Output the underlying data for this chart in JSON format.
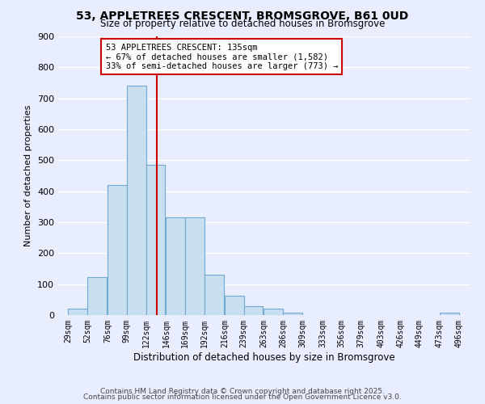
{
  "title1": "53, APPLETREES CRESCENT, BROMSGROVE, B61 0UD",
  "title2": "Size of property relative to detached houses in Bromsgrove",
  "xlabel": "Distribution of detached houses by size in Bromsgrove",
  "ylabel": "Number of detached properties",
  "bar_left_edges": [
    29,
    52,
    76,
    99,
    122,
    146,
    169,
    192,
    216,
    239,
    263,
    286,
    309,
    333,
    356,
    379,
    403,
    426,
    449,
    473
  ],
  "bar_heights": [
    20,
    122,
    420,
    740,
    485,
    315,
    315,
    130,
    63,
    30,
    20,
    8,
    0,
    0,
    0,
    0,
    0,
    0,
    0,
    8
  ],
  "bin_width": 23,
  "bar_color": "#c8dff0",
  "bar_edge_color": "#6fa8d0",
  "vline_x": 135,
  "vline_color": "#cc0000",
  "annotation_text": "53 APPLETREES CRESCENT: 135sqm\n← 67% of detached houses are smaller (1,582)\n33% of semi-detached houses are larger (773) →",
  "annotation_box_color": "white",
  "annotation_box_edge_color": "#cc0000",
  "ylim": [
    0,
    900
  ],
  "yticks": [
    0,
    100,
    200,
    300,
    400,
    500,
    600,
    700,
    800,
    900
  ],
  "x_tick_labels": [
    "29sqm",
    "52sqm",
    "76sqm",
    "99sqm",
    "122sqm",
    "146sqm",
    "169sqm",
    "192sqm",
    "216sqm",
    "239sqm",
    "263sqm",
    "286sqm",
    "309sqm",
    "333sqm",
    "356sqm",
    "379sqm",
    "403sqm",
    "426sqm",
    "449sqm",
    "473sqm",
    "496sqm"
  ],
  "x_tick_positions": [
    29,
    52,
    76,
    99,
    122,
    146,
    169,
    192,
    216,
    239,
    263,
    286,
    309,
    333,
    356,
    379,
    403,
    426,
    449,
    473,
    496
  ],
  "xlim_left": 17,
  "xlim_right": 510,
  "background_color": "#e8eeff",
  "grid_color": "#ffffff",
  "footer_text1": "Contains HM Land Registry data © Crown copyright and database right 2025.",
  "footer_text2": "Contains public sector information licensed under the Open Government Licence v3.0."
}
